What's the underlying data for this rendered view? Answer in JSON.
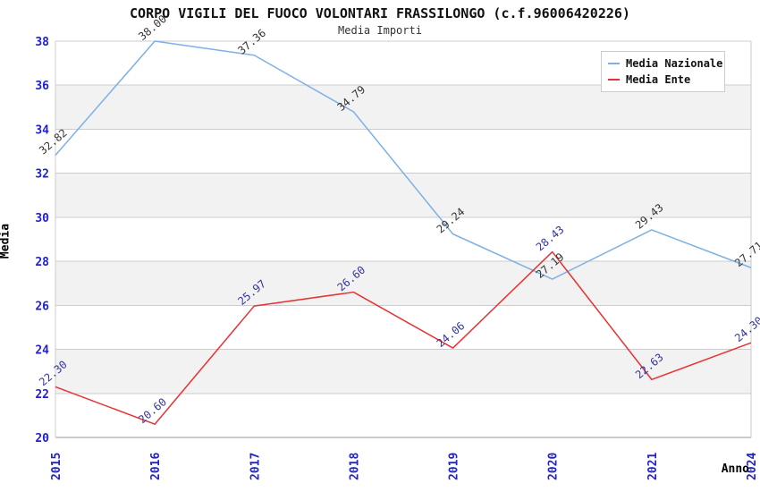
{
  "title": "CORPO VIGILI DEL FUOCO VOLONTARI FRASSILONGO (c.f.96006420226)",
  "subtitle": "Media Importi",
  "chart_data": {
    "type": "line",
    "x": [
      "2015",
      "2016",
      "2017",
      "2018",
      "2019",
      "2020",
      "2021",
      "2024"
    ],
    "xlabel": "Anno",
    "ylabel": "Media",
    "ylim": [
      20,
      38
    ],
    "ytick_step": 2,
    "yticks": [
      20,
      22,
      24,
      26,
      28,
      30,
      32,
      34,
      36,
      38
    ],
    "grid": true,
    "alternating_bands": true,
    "legend_position": "top-right",
    "data_label_rotation_deg": -40,
    "series": [
      {
        "name": "Media Nazionale",
        "color": "#7cb0e6",
        "label_color": "#333333",
        "values": [
          32.82,
          38.0,
          37.36,
          34.79,
          29.24,
          27.19,
          29.43,
          27.71
        ]
      },
      {
        "name": "Media Ente",
        "color": "#e63232",
        "label_color": "#333399",
        "values": [
          22.3,
          20.6,
          25.97,
          26.6,
          24.06,
          28.43,
          22.63,
          24.3
        ]
      }
    ]
  },
  "colors": {
    "tick_label": "#2222cc",
    "axis_title": "#000000",
    "gridline": "#cccccc",
    "band_fill": "#f2f2f2",
    "axis_line": "#999999",
    "background": "#ffffff",
    "legend_border": "#cccccc"
  }
}
